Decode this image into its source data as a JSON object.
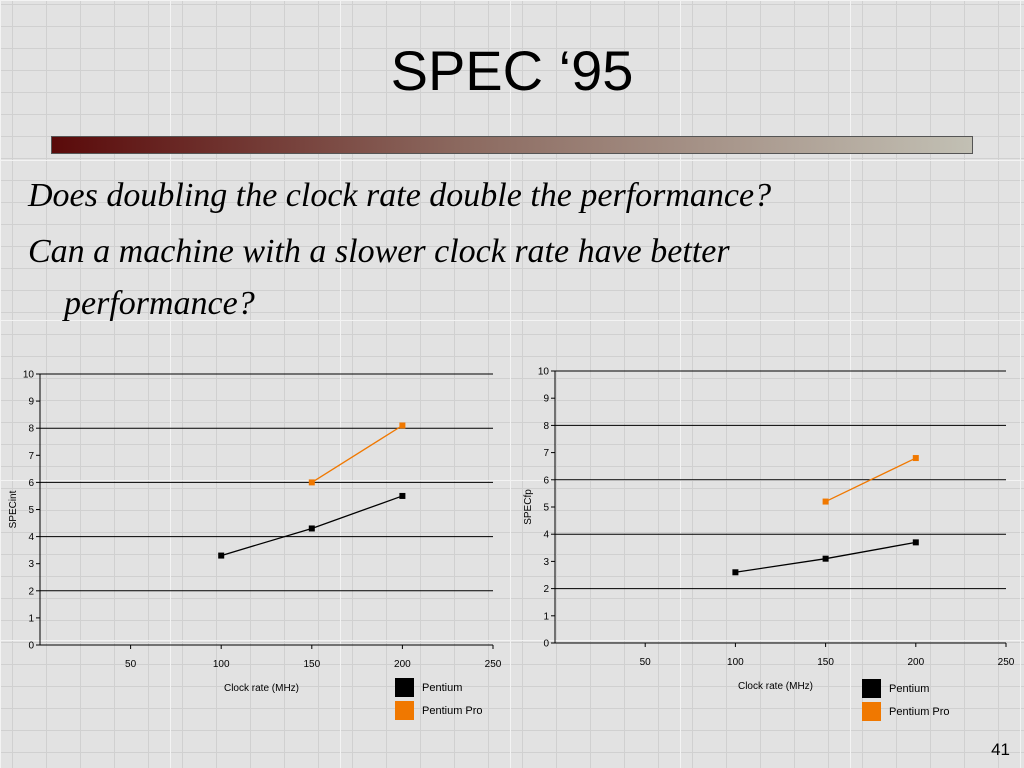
{
  "slide": {
    "title": "SPEC ‘95",
    "question1": "Does doubling the clock rate double the performance?",
    "question2": "Can a machine with a slower clock rate have better performance?",
    "slide_number": "41"
  },
  "colors": {
    "pentium": "#000000",
    "pentium_pro": "#f07800",
    "gridline": "#000000",
    "accent_bar_start": "#5a0a0a",
    "accent_bar_end": "#c2c0b4"
  },
  "chart_data": [
    {
      "type": "line",
      "xlabel": "Clock rate (MHz)",
      "ylabel": "SPECint",
      "xlim": [
        0,
        250
      ],
      "ylim": [
        0,
        10
      ],
      "x_ticks": [
        50,
        100,
        150,
        200,
        250
      ],
      "y_ticks": [
        0,
        1,
        2,
        3,
        4,
        5,
        6,
        7,
        8,
        9,
        10
      ],
      "grid": "horizontal major at 0, 2, 4, 6, 8, 10",
      "legend": "bottom-right",
      "series": [
        {
          "name": "Pentium",
          "color": "#000000",
          "x": [
            100,
            150,
            200
          ],
          "y": [
            3.3,
            4.3,
            5.5
          ]
        },
        {
          "name": "Pentium Pro",
          "color": "#f07800",
          "x": [
            150,
            200
          ],
          "y": [
            6.0,
            8.1
          ]
        }
      ]
    },
    {
      "type": "line",
      "xlabel": "Clock rate (MHz)",
      "ylabel": "SPECfp",
      "xlim": [
        0,
        250
      ],
      "ylim": [
        0,
        10
      ],
      "x_ticks": [
        50,
        100,
        150,
        200,
        250
      ],
      "y_ticks": [
        0,
        1,
        2,
        3,
        4,
        5,
        6,
        7,
        8,
        9,
        10
      ],
      "grid": "horizontal major at 0, 2, 4, 6, 8, 10",
      "legend": "bottom-right",
      "series": [
        {
          "name": "Pentium",
          "color": "#000000",
          "x": [
            100,
            150,
            200
          ],
          "y": [
            2.6,
            3.1,
            3.7
          ]
        },
        {
          "name": "Pentium Pro",
          "color": "#f07800",
          "x": [
            150,
            200
          ],
          "y": [
            5.2,
            6.8
          ]
        }
      ]
    }
  ]
}
